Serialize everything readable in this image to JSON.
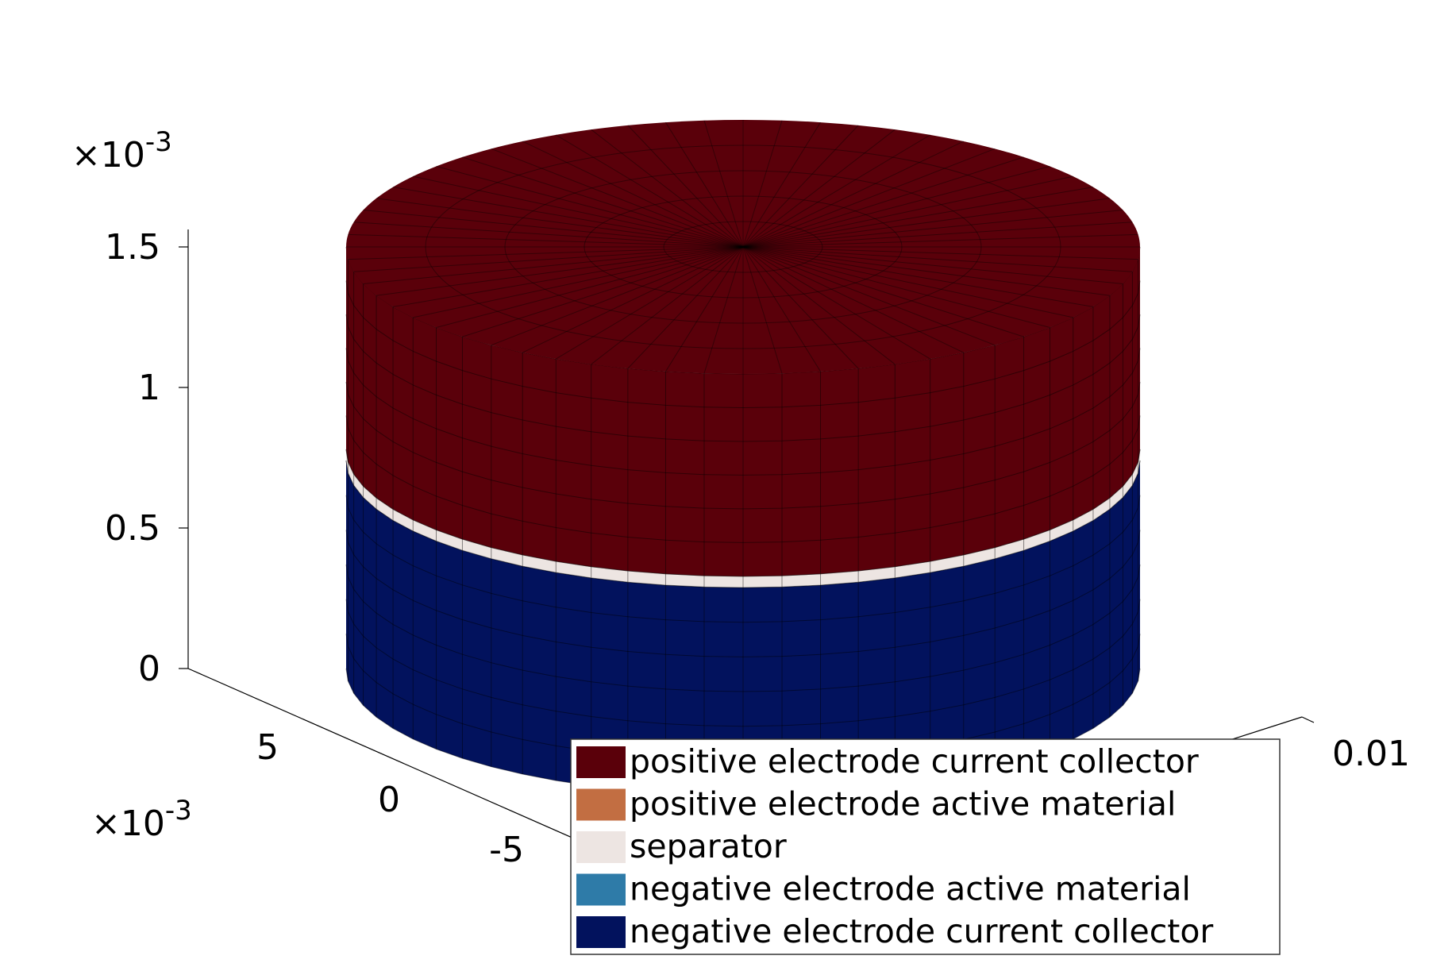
{
  "chart_data": {
    "type": "3d-surface",
    "title": "",
    "z_axis": {
      "ticks": [
        {
          "value": 0,
          "label": "0"
        },
        {
          "value": 0.0005,
          "label": "0.5"
        },
        {
          "value": 0.001,
          "label": "1"
        },
        {
          "value": 0.0015,
          "label": "1.5"
        }
      ],
      "multiplier_base": "×10",
      "multiplier_exp": "-3"
    },
    "y_axis": {
      "ticks": [
        {
          "value": 0.005,
          "label": "5"
        },
        {
          "value": 0,
          "label": "0"
        },
        {
          "value": -0.005,
          "label": "-5"
        }
      ],
      "multiplier_base": "×10",
      "multiplier_exp": "-3"
    },
    "x_axis": {
      "ticks": [
        {
          "value": 0.01,
          "label": "0.01"
        }
      ]
    },
    "layers": [
      {
        "name": "positive electrode current collector",
        "color": "#5a000a",
        "z_range": [
          0.00078,
          0.0015
        ]
      },
      {
        "name": "positive electrode active material",
        "color": "#c26e42",
        "z_range": [
          0.00078,
          0.00078
        ]
      },
      {
        "name": "separator",
        "color": "#ede5e2",
        "z_range": [
          0.00074,
          0.00078
        ]
      },
      {
        "name": "negative electrode active material",
        "color": "#2e7ba8",
        "z_range": [
          0.00074,
          0.00074
        ]
      },
      {
        "name": "negative electrode current collector",
        "color": "#02125d",
        "z_range": [
          0.0,
          0.00074
        ]
      }
    ],
    "legend": {
      "placement": "bottom-right",
      "entries": [
        {
          "label": "positive electrode current collector",
          "color": "#5a000a"
        },
        {
          "label": "positive electrode active material",
          "color": "#c26e42"
        },
        {
          "label": "separator",
          "color": "#ede5e2"
        },
        {
          "label": "negative electrode active material",
          "color": "#2e7ba8"
        },
        {
          "label": "negative electrode current collector",
          "color": "#02125d"
        }
      ]
    },
    "grid": false
  }
}
